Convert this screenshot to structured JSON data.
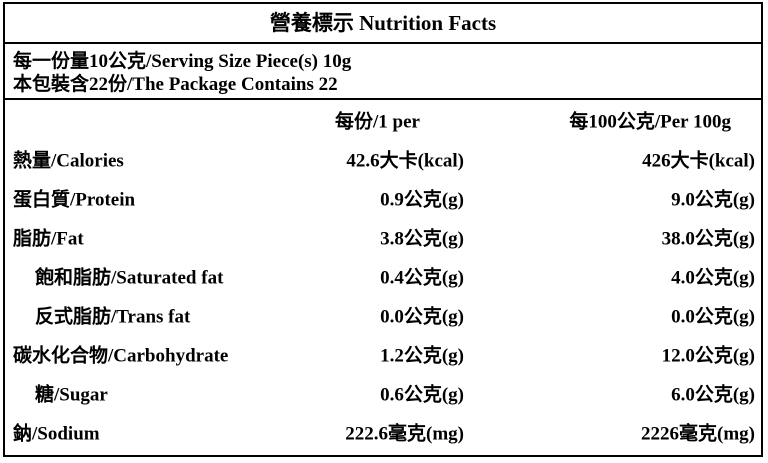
{
  "header": {
    "title": "營養標示 Nutrition Facts"
  },
  "serving": {
    "size": "每一份量10公克/Serving Size Piece(s) 10g",
    "package": "本包裝含22份/The Package Contains 22"
  },
  "table": {
    "columns": [
      "每份/1 per",
      "每100公克/Per 100g"
    ],
    "rows": [
      [
        "熱量/Calories",
        "42.6大卡(kcal)",
        "426大卡(kcal)"
      ],
      [
        "蛋白質/Protein",
        "0.9公克(g)",
        "9.0公克(g)"
      ],
      [
        "脂肪/Fat",
        "3.8公克(g)",
        "38.0公克(g)"
      ],
      [
        "飽和脂肪/Saturated fat",
        "0.4公克(g)",
        "4.0公克(g)"
      ],
      [
        "反式脂肪/Trans fat",
        "0.0公克(g)",
        "0.0公克(g)"
      ],
      [
        "碳水化合物/Carbohydrate",
        "1.2公克(g)",
        "12.0公克(g)"
      ],
      [
        "糖/Sugar",
        "0.6公克(g)",
        "6.0公克(g)"
      ],
      [
        "鈉/Sodium",
        "222.6毫克(mg)",
        "2226毫克(mg)"
      ]
    ]
  }
}
